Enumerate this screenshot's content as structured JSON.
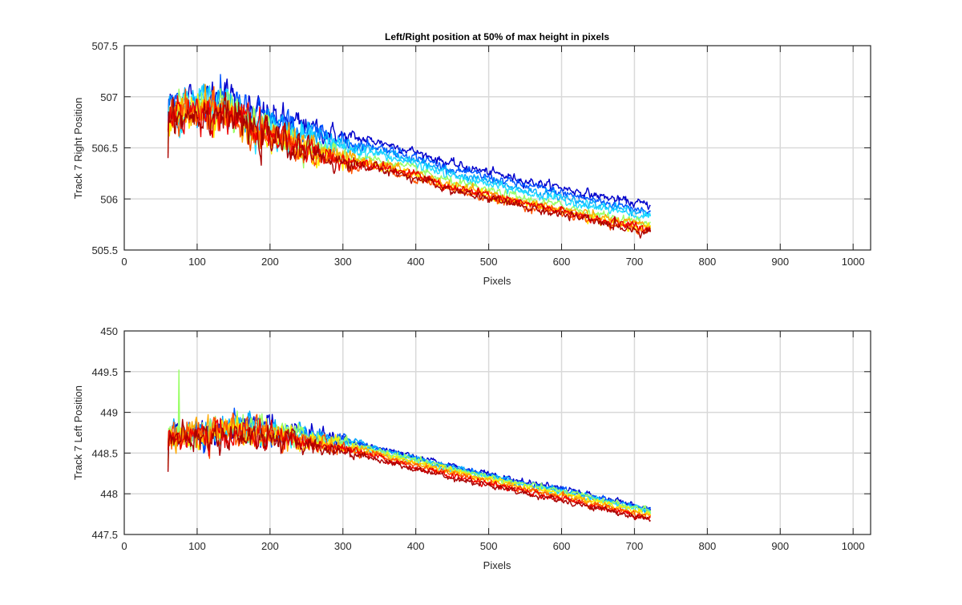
{
  "figure": {
    "background": "#ffffff",
    "colormap": "jet"
  },
  "chart_data": [
    {
      "type": "line",
      "title": "Left/Right position at 50% of max height in pixels",
      "xlabel": "Pixels",
      "ylabel": "Track 7 Right Position",
      "xlim": [
        0,
        1024
      ],
      "ylim": [
        505.5,
        507.5
      ],
      "xticks": [
        "0",
        "100",
        "200",
        "300",
        "400",
        "500",
        "600",
        "700",
        "800",
        "900",
        "1000"
      ],
      "yticks": [
        "505.5",
        "506",
        "506.5",
        "507",
        "507.5"
      ],
      "grid": true,
      "x_range": [
        60,
        722
      ],
      "series_colors": [
        "#0000cc",
        "#0055ff",
        "#00aaff",
        "#22ddff",
        "#99ff66",
        "#ffee00",
        "#ffaa00",
        "#ff5500",
        "#ee0000",
        "#aa0000"
      ],
      "series_offsets": [
        0.16,
        0.11,
        0.07,
        0.04,
        -0.02,
        -0.07,
        -0.05,
        -0.09,
        -0.07,
        -0.1
      ],
      "trend": [
        [
          60,
          506.85
        ],
        [
          100,
          506.9
        ],
        [
          140,
          506.9
        ],
        [
          175,
          506.72
        ],
        [
          200,
          506.67
        ],
        [
          250,
          506.55
        ],
        [
          300,
          506.45
        ],
        [
          350,
          506.4
        ],
        [
          400,
          506.3
        ],
        [
          450,
          506.18
        ],
        [
          500,
          506.1
        ],
        [
          550,
          506.02
        ],
        [
          600,
          505.95
        ],
        [
          650,
          505.87
        ],
        [
          700,
          505.8
        ],
        [
          722,
          505.78
        ]
      ],
      "noise_early": 0.17,
      "noise_late": 0.04
    },
    {
      "type": "line",
      "title": "",
      "xlabel": "Pixels",
      "ylabel": "Track 7 Left Position",
      "xlim": [
        0,
        1024
      ],
      "ylim": [
        447.5,
        450
      ],
      "xticks": [
        "0",
        "100",
        "200",
        "300",
        "400",
        "500",
        "600",
        "700",
        "800",
        "900",
        "1000"
      ],
      "yticks": [
        "447.5",
        "448",
        "448.5",
        "449",
        "449.5",
        "450"
      ],
      "grid": true,
      "x_range": [
        60,
        722
      ],
      "series_colors": [
        "#0000cc",
        "#0055ff",
        "#00aaff",
        "#22ddff",
        "#99ff66",
        "#ffee00",
        "#ffaa00",
        "#ff5500",
        "#ee0000",
        "#aa0000"
      ],
      "series_offsets": [
        0.06,
        0.05,
        0.04,
        0.02,
        0.03,
        0.0,
        -0.02,
        -0.04,
        -0.06,
        -0.08
      ],
      "trend": [
        [
          60,
          448.7
        ],
        [
          100,
          448.72
        ],
        [
          150,
          448.78
        ],
        [
          200,
          448.75
        ],
        [
          250,
          448.68
        ],
        [
          300,
          448.6
        ],
        [
          350,
          448.5
        ],
        [
          400,
          448.38
        ],
        [
          450,
          448.28
        ],
        [
          500,
          448.18
        ],
        [
          550,
          448.08
        ],
        [
          600,
          448.0
        ],
        [
          650,
          447.9
        ],
        [
          700,
          447.8
        ],
        [
          722,
          447.76
        ]
      ],
      "noise_early": 0.16,
      "noise_late": 0.035,
      "spike": {
        "series": 4,
        "x": 75,
        "y": 449.52
      }
    }
  ]
}
